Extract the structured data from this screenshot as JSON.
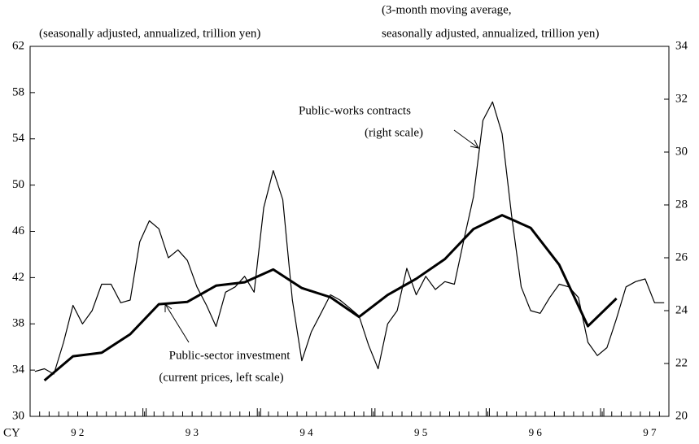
{
  "chart_data": {
    "type": "line",
    "ylabel": "(seasonally adjusted, annualized, trillion yen)",
    "y2label": [
      "(3-month moving average,",
      "seasonally adjusted, annualized, trillion yen)"
    ],
    "xlabel": "CY",
    "annotations": [
      "Public-works contracts",
      "(right scale)",
      "Public-sector investment",
      "(current prices, left scale)"
    ],
    "xlim": [
      1992,
      1997.583
    ],
    "xticks": [
      {
        "value": 1992.5,
        "label": "9 2"
      },
      {
        "value": 1993.5,
        "label": "9 3"
      },
      {
        "value": 1994.5,
        "label": "9 4"
      },
      {
        "value": 1995.5,
        "label": "9 5"
      },
      {
        "value": 1996.5,
        "label": "9 6"
      },
      {
        "value": 1997.5,
        "label": "9 7"
      }
    ],
    "year_boundaries": [
      1993,
      1994,
      1995,
      1996,
      1997
    ],
    "ylim": [
      30,
      62
    ],
    "yticks": [
      30,
      34,
      38,
      42,
      46,
      50,
      54,
      58,
      62
    ],
    "y2lim": [
      20,
      34
    ],
    "y2ticks": [
      20,
      22,
      24,
      26,
      28,
      30,
      32,
      34
    ],
    "series": [
      {
        "name": "Public-sector investment",
        "color": "#000000",
        "width": 3,
        "x": [
          1992.125,
          1992.375,
          1992.625,
          1992.875,
          1993.125,
          1993.375,
          1993.625,
          1993.875,
          1994.125,
          1994.375,
          1994.625,
          1994.875,
          1995.125,
          1995.375,
          1995.625,
          1995.875,
          1996.125,
          1996.375,
          1996.625,
          1996.875,
          1997.125
        ],
        "values": [
          33.1,
          35.2,
          35.5,
          37.1,
          39.7,
          39.9,
          41.3,
          41.6,
          42.7,
          41.1,
          40.3,
          38.6,
          40.5,
          41.9,
          43.6,
          46.2,
          47.4,
          46.3,
          43.1,
          37.8,
          40.2
        ]
      },
      {
        "name": "Public-works contracts",
        "color": "#000000",
        "width": 1.2,
        "axis": "y2",
        "x": [
          1992.042,
          1992.125,
          1992.208,
          1992.292,
          1992.375,
          1992.458,
          1992.542,
          1992.625,
          1992.708,
          1992.792,
          1992.875,
          1992.958,
          1993.042,
          1993.125,
          1993.208,
          1993.292,
          1993.375,
          1993.458,
          1993.542,
          1993.625,
          1993.708,
          1993.792,
          1993.875,
          1993.958,
          1994.042,
          1994.125,
          1994.208,
          1994.292,
          1994.375,
          1994.458,
          1994.542,
          1994.625,
          1994.708,
          1994.792,
          1994.875,
          1994.958,
          1995.042,
          1995.125,
          1995.208,
          1995.292,
          1995.375,
          1995.458,
          1995.542,
          1995.625,
          1995.708,
          1995.792,
          1995.875,
          1995.958,
          1996.042,
          1996.125,
          1996.208,
          1996.292,
          1996.375,
          1996.458,
          1996.542,
          1996.625,
          1996.708,
          1996.792,
          1996.875,
          1996.958,
          1997.042,
          1997.125,
          1997.208,
          1997.292,
          1997.375,
          1997.458,
          1997.542
        ],
        "values": [
          21.7,
          21.8,
          21.6,
          22.8,
          24.2,
          23.5,
          24.0,
          25.0,
          25.0,
          24.3,
          24.4,
          26.6,
          27.4,
          27.1,
          26.0,
          26.3,
          25.9,
          24.9,
          24.2,
          23.4,
          24.7,
          24.9,
          25.3,
          24.7,
          27.9,
          29.3,
          28.2,
          24.4,
          22.1,
          23.2,
          23.9,
          24.6,
          24.4,
          24.1,
          23.8,
          22.7,
          21.8,
          23.5,
          24.0,
          25.6,
          24.6,
          25.3,
          24.8,
          25.1,
          25.0,
          26.7,
          28.3,
          31.2,
          31.9,
          30.7,
          27.6,
          24.9,
          24.0,
          23.9,
          24.5,
          25.0,
          24.9,
          24.5,
          22.8,
          22.3,
          22.6,
          23.7,
          24.9,
          25.1,
          25.2,
          24.3,
          24.3
        ]
      }
    ]
  }
}
